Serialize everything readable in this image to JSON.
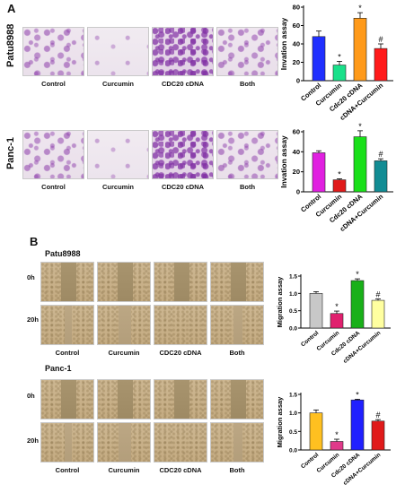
{
  "panel_a": {
    "letter": "A",
    "rows": [
      {
        "cell_line": "Patu8988",
        "labels": [
          "Control",
          "Curcumin",
          "CDC20  cDNA",
          "Both"
        ]
      },
      {
        "cell_line": "Panc-1",
        "labels": [
          "Control",
          "Curcumin",
          "CDC20  cDNA",
          "Both"
        ]
      }
    ]
  },
  "panel_b": {
    "letter": "B",
    "blocks": [
      {
        "cell_line": "Patu8988",
        "times": [
          "0h",
          "20h"
        ],
        "labels": [
          "Control",
          "Curcumin",
          "CDC20  cDNA",
          "Both"
        ]
      },
      {
        "cell_line": "Panc-1",
        "times": [
          "0h",
          "20h"
        ],
        "labels": [
          "Control",
          "Curcumin",
          "CDC20  cDNA",
          "Both"
        ]
      }
    ]
  },
  "chart_data": [
    {
      "type": "bar",
      "ylabel": "Invation  assay",
      "categories": [
        "Control",
        "Curcumin",
        "Cdc20 cDNA",
        "cDNA+Curcumin"
      ],
      "values": [
        48,
        17,
        68,
        35
      ],
      "errors": [
        6,
        4,
        6,
        5
      ],
      "annotations": [
        "",
        "*",
        "*",
        "#"
      ],
      "colors": [
        "#1f2fff",
        "#19e08a",
        "#ff9a1a",
        "#ff1a1a"
      ],
      "ylim": [
        0,
        80
      ],
      "yticks": [
        "0",
        "20",
        "40",
        "60",
        "80"
      ]
    },
    {
      "type": "bar",
      "ylabel": "Invation  assay",
      "categories": [
        "Control",
        "Curcumin",
        "Cdc20 cDNA",
        "cDNA+Curcumin"
      ],
      "values": [
        39,
        12,
        55,
        31
      ],
      "errors": [
        2,
        1,
        6,
        2
      ],
      "annotations": [
        "",
        "*",
        "*",
        "#"
      ],
      "colors": [
        "#e020e0",
        "#e01a1a",
        "#19e019",
        "#128c94"
      ],
      "ylim": [
        0,
        60
      ],
      "yticks": [
        "0",
        "20",
        "40",
        "60"
      ]
    },
    {
      "type": "bar",
      "ylabel": "Migration  assay",
      "categories": [
        "Control",
        "Curcumin",
        "Cdc20 cDNA",
        "cDNA+Curcumin"
      ],
      "values": [
        1.0,
        0.42,
        1.37,
        0.8
      ],
      "errors": [
        0.05,
        0.07,
        0.05,
        0.04
      ],
      "annotations": [
        "",
        "*",
        "*",
        "#"
      ],
      "colors": [
        "#c8c8c8",
        "#e0206e",
        "#19b019",
        "#ffffa0"
      ],
      "ylim": [
        0,
        1.5
      ],
      "yticks": [
        "0.0",
        "0.5",
        "1.0",
        "1.5"
      ]
    },
    {
      "type": "bar",
      "ylabel": "Migration  assay",
      "categories": [
        "Control",
        "Curcumin",
        "Cdc20 cDNA",
        "cDNA+Curcumin"
      ],
      "values": [
        1.0,
        0.23,
        1.35,
        0.78
      ],
      "errors": [
        0.08,
        0.06,
        0.02,
        0.04
      ],
      "annotations": [
        "",
        "*",
        "*",
        "#"
      ],
      "colors": [
        "#ffc020",
        "#e03a8a",
        "#2020ff",
        "#e01a1a"
      ],
      "ylim": [
        0,
        1.5
      ],
      "yticks": [
        "0.0",
        "0.5",
        "1.0",
        "1.5"
      ]
    }
  ]
}
